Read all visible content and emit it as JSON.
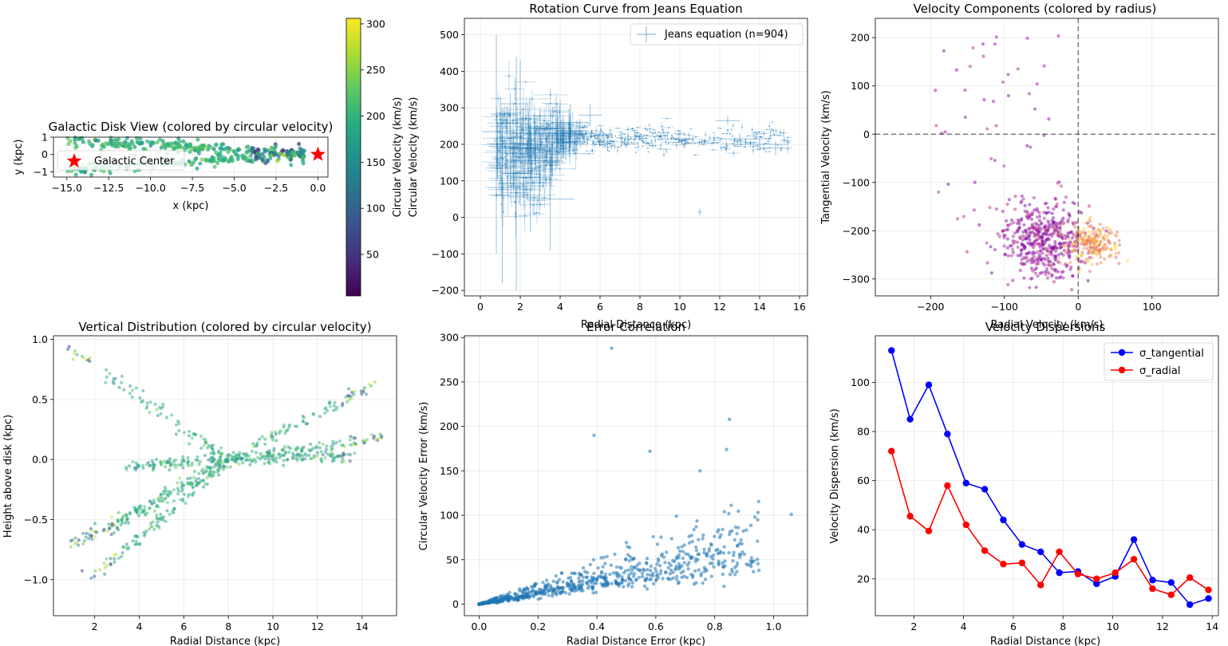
{
  "chart_data": [
    {
      "type": "scatter",
      "title": "Galactic Disk View (colored by circular velocity)",
      "xlabel": "x (kpc)",
      "ylabel": "y (kpc)",
      "xlim": [
        -15.8,
        0.6
      ],
      "ylim": [
        -1.3,
        1.0
      ],
      "xticks": [
        -15.0,
        -12.5,
        -10.0,
        -7.5,
        -5.0,
        -2.5,
        0.0
      ],
      "xtick_labels": [
        "−15.0",
        "−12.5",
        "−10.0",
        "−7.5",
        "−5.0",
        "−2.5",
        "0.0"
      ],
      "yticks": [
        -1,
        0,
        1
      ],
      "ytick_labels": [
        "−1",
        "0",
        "1"
      ],
      "legend": [
        {
          "label": "Galactic Center",
          "marker": "star",
          "color": "#ff0000"
        }
      ],
      "legend_position": "lower-left",
      "galactic_center": [
        0,
        0
      ],
      "colorbar": {
        "label": "Circular Velocity (km/s)",
        "min": 5,
        "max": 306,
        "ticks": [
          50,
          100,
          150,
          200,
          250,
          300
        ],
        "cmap": "viridis"
      },
      "point_count": 904
    },
    {
      "type": "scatter",
      "title": "Rotation Curve from Jeans Equation",
      "xlabel": "Radial Distance (kpc)",
      "ylabel": "Circular Velocity (km/s)",
      "xlim": [
        -0.8,
        16.4
      ],
      "ylim": [
        -215,
        545
      ],
      "xticks": [
        0,
        2,
        4,
        6,
        8,
        10,
        12,
        14,
        16
      ],
      "xtick_labels": [
        "0",
        "2",
        "4",
        "6",
        "8",
        "10",
        "12",
        "14",
        "16"
      ],
      "yticks": [
        -200,
        -100,
        0,
        100,
        200,
        300,
        400,
        500
      ],
      "ytick_labels": [
        "−200",
        "−100",
        "0",
        "100",
        "200",
        "300",
        "400",
        "500"
      ],
      "legend": [
        {
          "label": "Jeans equation (n=904)",
          "marker": "errorbar",
          "color": "#1f77b4"
        }
      ],
      "legend_position": "top-right",
      "series": [
        {
          "name": "Jeans equation (n=904)",
          "points": [
            {
              "x": 0.8,
              "y": 200,
              "xerr": 0.3,
              "yerr": 300
            },
            {
              "x": 1.1,
              "y": 60,
              "xerr": 0.4,
              "yerr": 240
            },
            {
              "x": 1.5,
              "y": 220,
              "xerr": 0.6,
              "yerr": 120
            },
            {
              "x": 1.8,
              "y": 120,
              "xerr": 0.7,
              "yerr": 320
            },
            {
              "x": 2.0,
              "y": 230,
              "xerr": 0.8,
              "yerr": 200
            },
            {
              "x": 2.5,
              "y": 110,
              "xerr": 1.0,
              "yerr": 150
            },
            {
              "x": 3.0,
              "y": 200,
              "xerr": 1.1,
              "yerr": 100
            },
            {
              "x": 3.5,
              "y": 50,
              "xerr": 1.2,
              "yerr": 140
            },
            {
              "x": 4.0,
              "y": 250,
              "xerr": 1.0,
              "yerr": 70
            },
            {
              "x": 4.5,
              "y": 260,
              "xerr": 0.9,
              "yerr": 50
            },
            {
              "x": 5.0,
              "y": 230,
              "xerr": 0.8,
              "yerr": 40
            },
            {
              "x": 5.5,
              "y": 280,
              "xerr": 0.6,
              "yerr": 30
            },
            {
              "x": 6.0,
              "y": 215,
              "xerr": 0.3,
              "yerr": 20
            },
            {
              "x": 8.0,
              "y": 220,
              "xerr": 0.2,
              "yerr": 10
            },
            {
              "x": 10.0,
              "y": 230,
              "xerr": 0.3,
              "yerr": 10
            },
            {
              "x": 11.0,
              "y": 15,
              "xerr": 0.1,
              "yerr": 10
            },
            {
              "x": 12.4,
              "y": 265,
              "xerr": 0.6,
              "yerr": 12
            },
            {
              "x": 13.0,
              "y": 215,
              "xerr": 1.0,
              "yerr": 15
            },
            {
              "x": 14.0,
              "y": 200,
              "xerr": 1.4,
              "yerr": 18
            },
            {
              "x": 14.8,
              "y": 190,
              "xerr": 0.8,
              "yerr": 20
            }
          ]
        }
      ]
    },
    {
      "type": "scatter",
      "title": "Velocity Components (colored by radius)",
      "xlabel": "Radial Velocity (km/s)",
      "ylabel": "Tangential Velocity (km/s)",
      "xlim": [
        -275,
        190
      ],
      "ylim": [
        -335,
        240
      ],
      "xticks": [
        -200,
        -100,
        0,
        100
      ],
      "xtick_labels": [
        "−200",
        "−100",
        "0",
        "100"
      ],
      "yticks": [
        -300,
        -200,
        -100,
        0,
        100,
        200
      ],
      "ytick_labels": [
        "−300",
        "−200",
        "−100",
        "0",
        "100",
        "200"
      ],
      "reference_lines": {
        "x": 0,
        "y": 0
      },
      "cmap": "plasma",
      "clusters": [
        {
          "center": [
            -48,
            -225
          ],
          "spread": [
            30,
            40
          ],
          "count": 520,
          "radius_range": "inner"
        },
        {
          "center": [
            20,
            -225
          ],
          "spread": [
            18,
            18
          ],
          "count": 200,
          "radius_range": "outer"
        }
      ]
    },
    {
      "type": "scatter",
      "title": "Vertical Distribution (colored by circular velocity)",
      "xlabel": "Radial Distance (kpc)",
      "ylabel": "Height above disk (kpc)",
      "xlim": [
        0.15,
        15.55
      ],
      "ylim": [
        -1.3,
        1.03
      ],
      "xticks": [
        2,
        4,
        6,
        8,
        10,
        12,
        14
      ],
      "xtick_labels": [
        "2",
        "4",
        "6",
        "8",
        "10",
        "12",
        "14"
      ],
      "yticks": [
        -1.0,
        -0.5,
        0.0,
        0.5,
        1.0
      ],
      "ytick_labels": [
        "−1.0",
        "−0.5",
        "0.0",
        "0.5",
        "1.0"
      ],
      "cmap": "viridis",
      "convergence_point": [
        8.0,
        0.0
      ]
    },
    {
      "type": "scatter",
      "title": "Error Correlation",
      "xlabel": "Radial Distance Error (kpc)",
      "ylabel": "Circular Velocity Error (km/s)",
      "xlim": [
        -0.05,
        1.115
      ],
      "ylim": [
        -13,
        302
      ],
      "xticks": [
        0.0,
        0.2,
        0.4,
        0.6,
        0.8,
        1.0
      ],
      "xtick_labels": [
        "0.0",
        "0.2",
        "0.4",
        "0.6",
        "0.8",
        "1.0"
      ],
      "yticks": [
        0,
        50,
        100,
        150,
        200,
        250,
        300
      ],
      "ytick_labels": [
        "0",
        "50",
        "100",
        "150",
        "200",
        "250",
        "300"
      ],
      "outliers": [
        [
          0.45,
          288
        ],
        [
          0.39,
          190
        ],
        [
          0.58,
          172
        ],
        [
          0.84,
          174
        ],
        [
          0.85,
          208
        ],
        [
          0.75,
          150
        ],
        [
          1.06,
          101
        ],
        [
          0.67,
          99
        ],
        [
          0.88,
          86
        ],
        [
          0.95,
          38
        ]
      ]
    },
    {
      "type": "line",
      "title": "Velocity Dispersions",
      "xlabel": "Radial Distance (kpc)",
      "ylabel": "Velocity Dispersion (km/s)",
      "xlim": [
        0.45,
        14.25
      ],
      "ylim": [
        5,
        119
      ],
      "xticks": [
        2,
        4,
        6,
        8,
        10,
        12,
        14
      ],
      "xtick_labels": [
        "2",
        "4",
        "6",
        "8",
        "10",
        "12",
        "14"
      ],
      "yticks": [
        20,
        40,
        60,
        80,
        100
      ],
      "ytick_labels": [
        "20",
        "40",
        "60",
        "80",
        "100"
      ],
      "legend_position": "top-right",
      "x": [
        1.1,
        1.85,
        2.6,
        3.35,
        4.1,
        4.85,
        5.6,
        6.35,
        7.1,
        7.85,
        8.6,
        9.35,
        10.1,
        10.85,
        11.6,
        12.35,
        13.1,
        13.85
      ],
      "series": [
        {
          "name": "σ_tangential",
          "color": "#0000ff",
          "values": [
            113,
            85,
            99,
            79,
            59,
            56.5,
            44,
            34,
            31,
            22.5,
            23,
            18,
            21,
            36,
            19.5,
            18.5,
            9.5,
            12
          ]
        },
        {
          "name": "σ_radial",
          "color": "#ff0000",
          "values": [
            72,
            45.5,
            39.5,
            58,
            42,
            31.5,
            26,
            26.5,
            17.5,
            31,
            22,
            20,
            22.5,
            28,
            16,
            13.5,
            20.5,
            15.5
          ]
        }
      ]
    }
  ]
}
